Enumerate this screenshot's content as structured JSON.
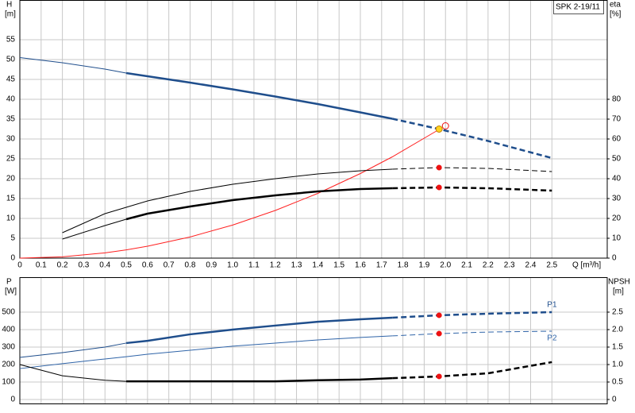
{
  "chart_data": [
    {
      "type": "line",
      "title": "SPK 2-19/11",
      "ylabel": "H",
      "yunit": "[m]",
      "y2label": "eta",
      "y2unit": "[%]",
      "xlabel": "Q [m³/h]",
      "x": [
        0,
        0.2,
        0.4,
        0.5,
        0.6,
        0.8,
        1.0,
        1.2,
        1.4,
        1.6,
        1.75,
        1.97,
        2.2,
        2.5
      ],
      "xlim": [
        0,
        2.76
      ],
      "xticks": [
        0,
        0.1,
        0.2,
        0.3,
        0.4,
        0.5,
        0.6,
        0.7,
        0.8,
        0.9,
        {
          "value": 1,
          "label": "1.0"
        },
        1.1,
        1.2,
        1.3,
        1.4,
        1.5,
        1.6,
        1.7,
        1.8,
        1.9,
        {
          "value": 2,
          "label": "2.0"
        },
        2.1,
        2.2,
        2.3,
        2.4,
        2.5
      ],
      "ylim": [
        0,
        65
      ],
      "yticks": [
        0,
        5,
        10,
        15,
        20,
        25,
        30,
        35,
        40,
        45,
        50,
        55
      ],
      "y2lim": [
        0,
        130
      ],
      "y2ticks": [
        0,
        10,
        20,
        30,
        40,
        50,
        60,
        70,
        80
      ],
      "grid": true,
      "series": [
        {
          "color": "#1f4e8c",
          "width": 1,
          "dashed": false,
          "values": [
            50.5,
            49.2,
            47.6,
            46.6,
            null,
            null,
            null,
            null,
            null,
            null,
            null,
            null,
            null,
            null
          ]
        },
        {
          "color": "#1f4e8c",
          "width": 2.5,
          "dashed": false,
          "values": [
            null,
            null,
            null,
            46.6,
            45.8,
            44.2,
            42.5,
            40.7,
            38.8,
            36.7,
            35.1,
            null,
            null,
            null
          ]
        },
        {
          "color": "#1f4e8c",
          "width": 2.5,
          "dashed": true,
          "values": [
            null,
            null,
            null,
            null,
            null,
            null,
            null,
            null,
            null,
            null,
            35.1,
            32.5,
            29.5,
            25.2
          ]
        },
        {
          "color": "#ff2020",
          "width": 1,
          "dashed": false,
          "values": [
            0,
            0.33,
            1.33,
            2.08,
            3.0,
            5.33,
            8.33,
            12.0,
            16.3,
            21.3,
            25.5,
            32.4,
            null,
            null
          ]
        },
        {
          "color": "#000000",
          "width": 1,
          "dashed": false,
          "axis": "y2",
          "values": [
            null,
            12.8,
            22.4,
            25.6,
            28.8,
            33.6,
            37.2,
            40,
            42.4,
            44,
            44.8,
            null,
            null,
            null
          ]
        },
        {
          "color": "#000000",
          "width": 1,
          "dashed": true,
          "axis": "y2",
          "values": [
            null,
            null,
            null,
            null,
            null,
            null,
            null,
            null,
            null,
            null,
            44.8,
            45.6,
            45.2,
            43.6
          ]
        },
        {
          "color": "#000000",
          "width": 1,
          "dashed": false,
          "axis": "y2",
          "values": [
            null,
            9.6,
            16.4,
            19.6,
            null,
            null,
            null,
            null,
            null,
            null,
            null,
            null,
            null,
            null
          ]
        },
        {
          "color": "#000000",
          "width": 2.5,
          "dashed": false,
          "axis": "y2",
          "values": [
            null,
            null,
            null,
            19.6,
            22.4,
            26,
            29.2,
            31.6,
            33.6,
            34.8,
            35.2,
            null,
            null,
            null
          ]
        },
        {
          "color": "#000000",
          "width": 2.5,
          "dashed": true,
          "axis": "y2",
          "values": [
            null,
            null,
            null,
            null,
            null,
            null,
            null,
            null,
            null,
            null,
            35.2,
            35.6,
            35.2,
            34
          ]
        }
      ],
      "points": [
        {
          "x": 1.97,
          "y": 45.6,
          "axis": "y2",
          "color": "#ee1111"
        },
        {
          "x": 1.97,
          "y": 35.6,
          "axis": "y2",
          "color": "#ee1111"
        },
        {
          "x": 2.0,
          "y": 33.3,
          "color": "none",
          "stroke": "#ee1111"
        },
        {
          "x": 1.97,
          "y": 32.5,
          "color": "#ffd21f",
          "stroke": "#c08000"
        }
      ]
    },
    {
      "type": "line",
      "ylabel": "P",
      "yunit": "[W]",
      "y2label": "NPSH",
      "y2unit": "[m]",
      "x": [
        0,
        0.2,
        0.4,
        0.5,
        0.6,
        0.8,
        1.0,
        1.2,
        1.4,
        1.6,
        1.75,
        1.97,
        2.2,
        2.5
      ],
      "xlim": [
        0,
        2.76
      ],
      "ylim": [
        -25,
        700
      ],
      "yticks": [
        0,
        100,
        200,
        300,
        400,
        500
      ],
      "y2lim": [
        -0.125,
        3.5
      ],
      "y2ticks": [
        0,
        0.5,
        {
          "value": 1,
          "label": "1.0"
        },
        1.5,
        {
          "value": 2,
          "label": "2.0"
        },
        2.5
      ],
      "grid": true,
      "series": [
        {
          "color": "#1f4e8c",
          "width": 1,
          "dashed": false,
          "values": [
            241,
            268,
            300,
            323,
            null,
            null,
            null,
            null,
            null,
            null,
            null,
            null,
            null,
            null
          ]
        },
        {
          "color": "#1f4e8c",
          "width": 2.5,
          "dashed": false,
          "values": [
            null,
            null,
            null,
            323,
            336,
            373,
            400,
            423,
            445,
            459,
            468,
            null,
            null,
            null
          ]
        },
        {
          "name": "P1",
          "color": "#1f4e8c",
          "width": 2.5,
          "dashed": true,
          "values": [
            null,
            null,
            null,
            null,
            null,
            null,
            null,
            null,
            null,
            null,
            468,
            482,
            491,
            500
          ]
        },
        {
          "color": "#2f64a8",
          "width": 1,
          "dashed": false,
          "values": [
            177,
            205,
            232,
            245,
            259,
            282,
            305,
            323,
            341,
            355,
            364,
            null,
            null,
            null
          ]
        },
        {
          "name": "P2",
          "color": "#2f64a8",
          "width": 1,
          "dashed": true,
          "values": [
            null,
            null,
            null,
            null,
            null,
            null,
            null,
            null,
            null,
            null,
            364,
            377,
            386,
            391
          ]
        },
        {
          "color": "#000000",
          "width": 1,
          "dashed": false,
          "axis": "y2",
          "values": [
            1.0,
            0.68,
            0.55,
            0.52,
            null,
            null,
            null,
            null,
            null,
            null,
            null,
            null,
            null,
            null
          ]
        },
        {
          "color": "#000000",
          "width": 2.5,
          "dashed": false,
          "axis": "y2",
          "values": [
            null,
            null,
            null,
            0.52,
            0.52,
            0.52,
            0.52,
            0.52,
            0.55,
            0.57,
            0.61,
            null,
            null,
            null
          ]
        },
        {
          "color": "#000000",
          "width": 2.5,
          "dashed": true,
          "axis": "y2",
          "values": [
            null,
            null,
            null,
            null,
            null,
            null,
            null,
            null,
            null,
            null,
            0.61,
            0.66,
            0.75,
            1.07
          ]
        }
      ],
      "points": [
        {
          "x": 1.97,
          "y": 482,
          "color": "#ee1111"
        },
        {
          "x": 1.97,
          "y": 377,
          "color": "#ee1111"
        },
        {
          "x": 1.97,
          "y": 0.66,
          "axis": "y2",
          "color": "#ee1111"
        }
      ]
    }
  ]
}
